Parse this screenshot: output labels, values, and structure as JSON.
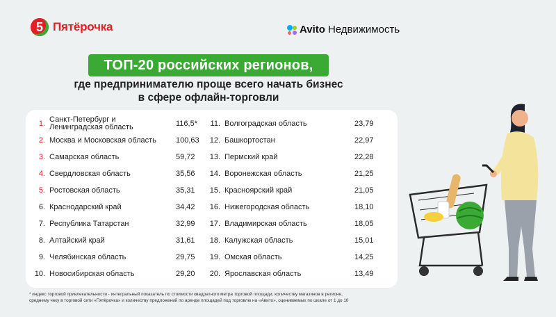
{
  "brand_left": {
    "mark": "5",
    "name": "Пятёрочка"
  },
  "brand_right": {
    "brand": "Avito",
    "suffix": "Недвижимость"
  },
  "title": "ТОП-20 российских регионов,",
  "subtitle_line1": "где предпринимателю проще всего начать бизнес",
  "subtitle_line2": "в сфере офлайн-торговли",
  "left_column": [
    {
      "rank": "1.",
      "name": "Санкт-Петербург и Ленинградская область",
      "value": "116,5*"
    },
    {
      "rank": "2.",
      "name": "Москва и Московская область",
      "value": "100,63"
    },
    {
      "rank": "3.",
      "name": "Самарская область",
      "value": "59,72"
    },
    {
      "rank": "4.",
      "name": "Свердловская область",
      "value": "35,56"
    },
    {
      "rank": "5.",
      "name": "Ростовская область",
      "value": "35,31"
    },
    {
      "rank": "6.",
      "name": "Краснодарский край",
      "value": "34,42"
    },
    {
      "rank": "7.",
      "name": "Республика Татарстан",
      "value": "32,99"
    },
    {
      "rank": "8.",
      "name": "Алтайский край",
      "value": "31,61"
    },
    {
      "rank": "9.",
      "name": "Челябинская область",
      "value": "29,75"
    },
    {
      "rank": "10.",
      "name": "Новосибирская область",
      "value": "29,20"
    }
  ],
  "right_column": [
    {
      "rank": "11.",
      "name": "Волгоградская область",
      "value": "23,79"
    },
    {
      "rank": "12.",
      "name": "Башкортостан",
      "value": "22,97"
    },
    {
      "rank": "13.",
      "name": "Пермский край",
      "value": "22,28"
    },
    {
      "rank": "14.",
      "name": "Воронежская область",
      "value": "21,25"
    },
    {
      "rank": "15.",
      "name": "Красноярский край",
      "value": "21,05"
    },
    {
      "rank": "16.",
      "name": "Нижегородская область",
      "value": "18,10"
    },
    {
      "rank": "17.",
      "name": "Владимирская область",
      "value": "18,05"
    },
    {
      "rank": "18.",
      "name": "Калужская область",
      "value": "15,01"
    },
    {
      "rank": "19.",
      "name": "Омская область",
      "value": "14,25"
    },
    {
      "rank": "20.",
      "name": "Ярославская область",
      "value": "13,49"
    }
  ],
  "footnote_line1": "* индекс торговой привлекательности - интегральный показатель по стоимости квадратного метра торговой площади, количеству магазинов в регионе,",
  "footnote_line2": "среднему чеку в торговой сети «Пятёрочка» и количеству предложений по аренде площадей под торговлю на «Авито», оцениваемых по шкале от 1 до 10",
  "colors": {
    "accent_red": "#e31e24",
    "accent_green": "#3aaa35",
    "background": "#eef1f2"
  },
  "illustration": "woman-with-shopping-cart"
}
